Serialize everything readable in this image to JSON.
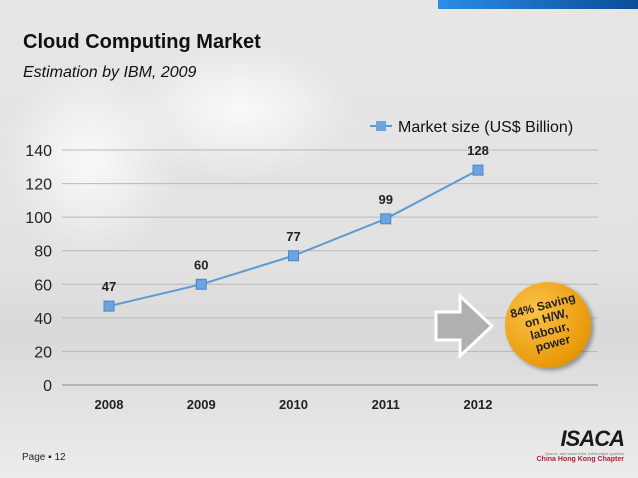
{
  "header": {
    "title": "Cloud Computing Market",
    "subtitle": "Estimation by IBM, 2009"
  },
  "callout": {
    "lines": [
      "84% Saving",
      "on H/W,",
      "labour,",
      "power"
    ]
  },
  "footer": {
    "page": "Page ▪ 12",
    "logo_text": "ISACA",
    "tagline": "Trust in, and value from, information systems",
    "chapter": "China Hong Kong Chapter"
  },
  "colors": {
    "series": "#5b9bd5",
    "marker": "#6fa3e0",
    "topbar": "#1a6fc8",
    "badge": "#f0a020"
  },
  "chart_data": {
    "type": "line",
    "title": "Cloud Computing Market",
    "categories": [
      "2008",
      "2009",
      "2010",
      "2011",
      "2012"
    ],
    "series": [
      {
        "name": "Market size (US$ Billion)",
        "values": [
          47,
          60,
          77,
          99,
          128
        ]
      }
    ],
    "ylim": [
      0,
      140
    ],
    "yticks": [
      0,
      20,
      40,
      60,
      80,
      100,
      120,
      140
    ],
    "grid": true,
    "legend": "top-right"
  }
}
